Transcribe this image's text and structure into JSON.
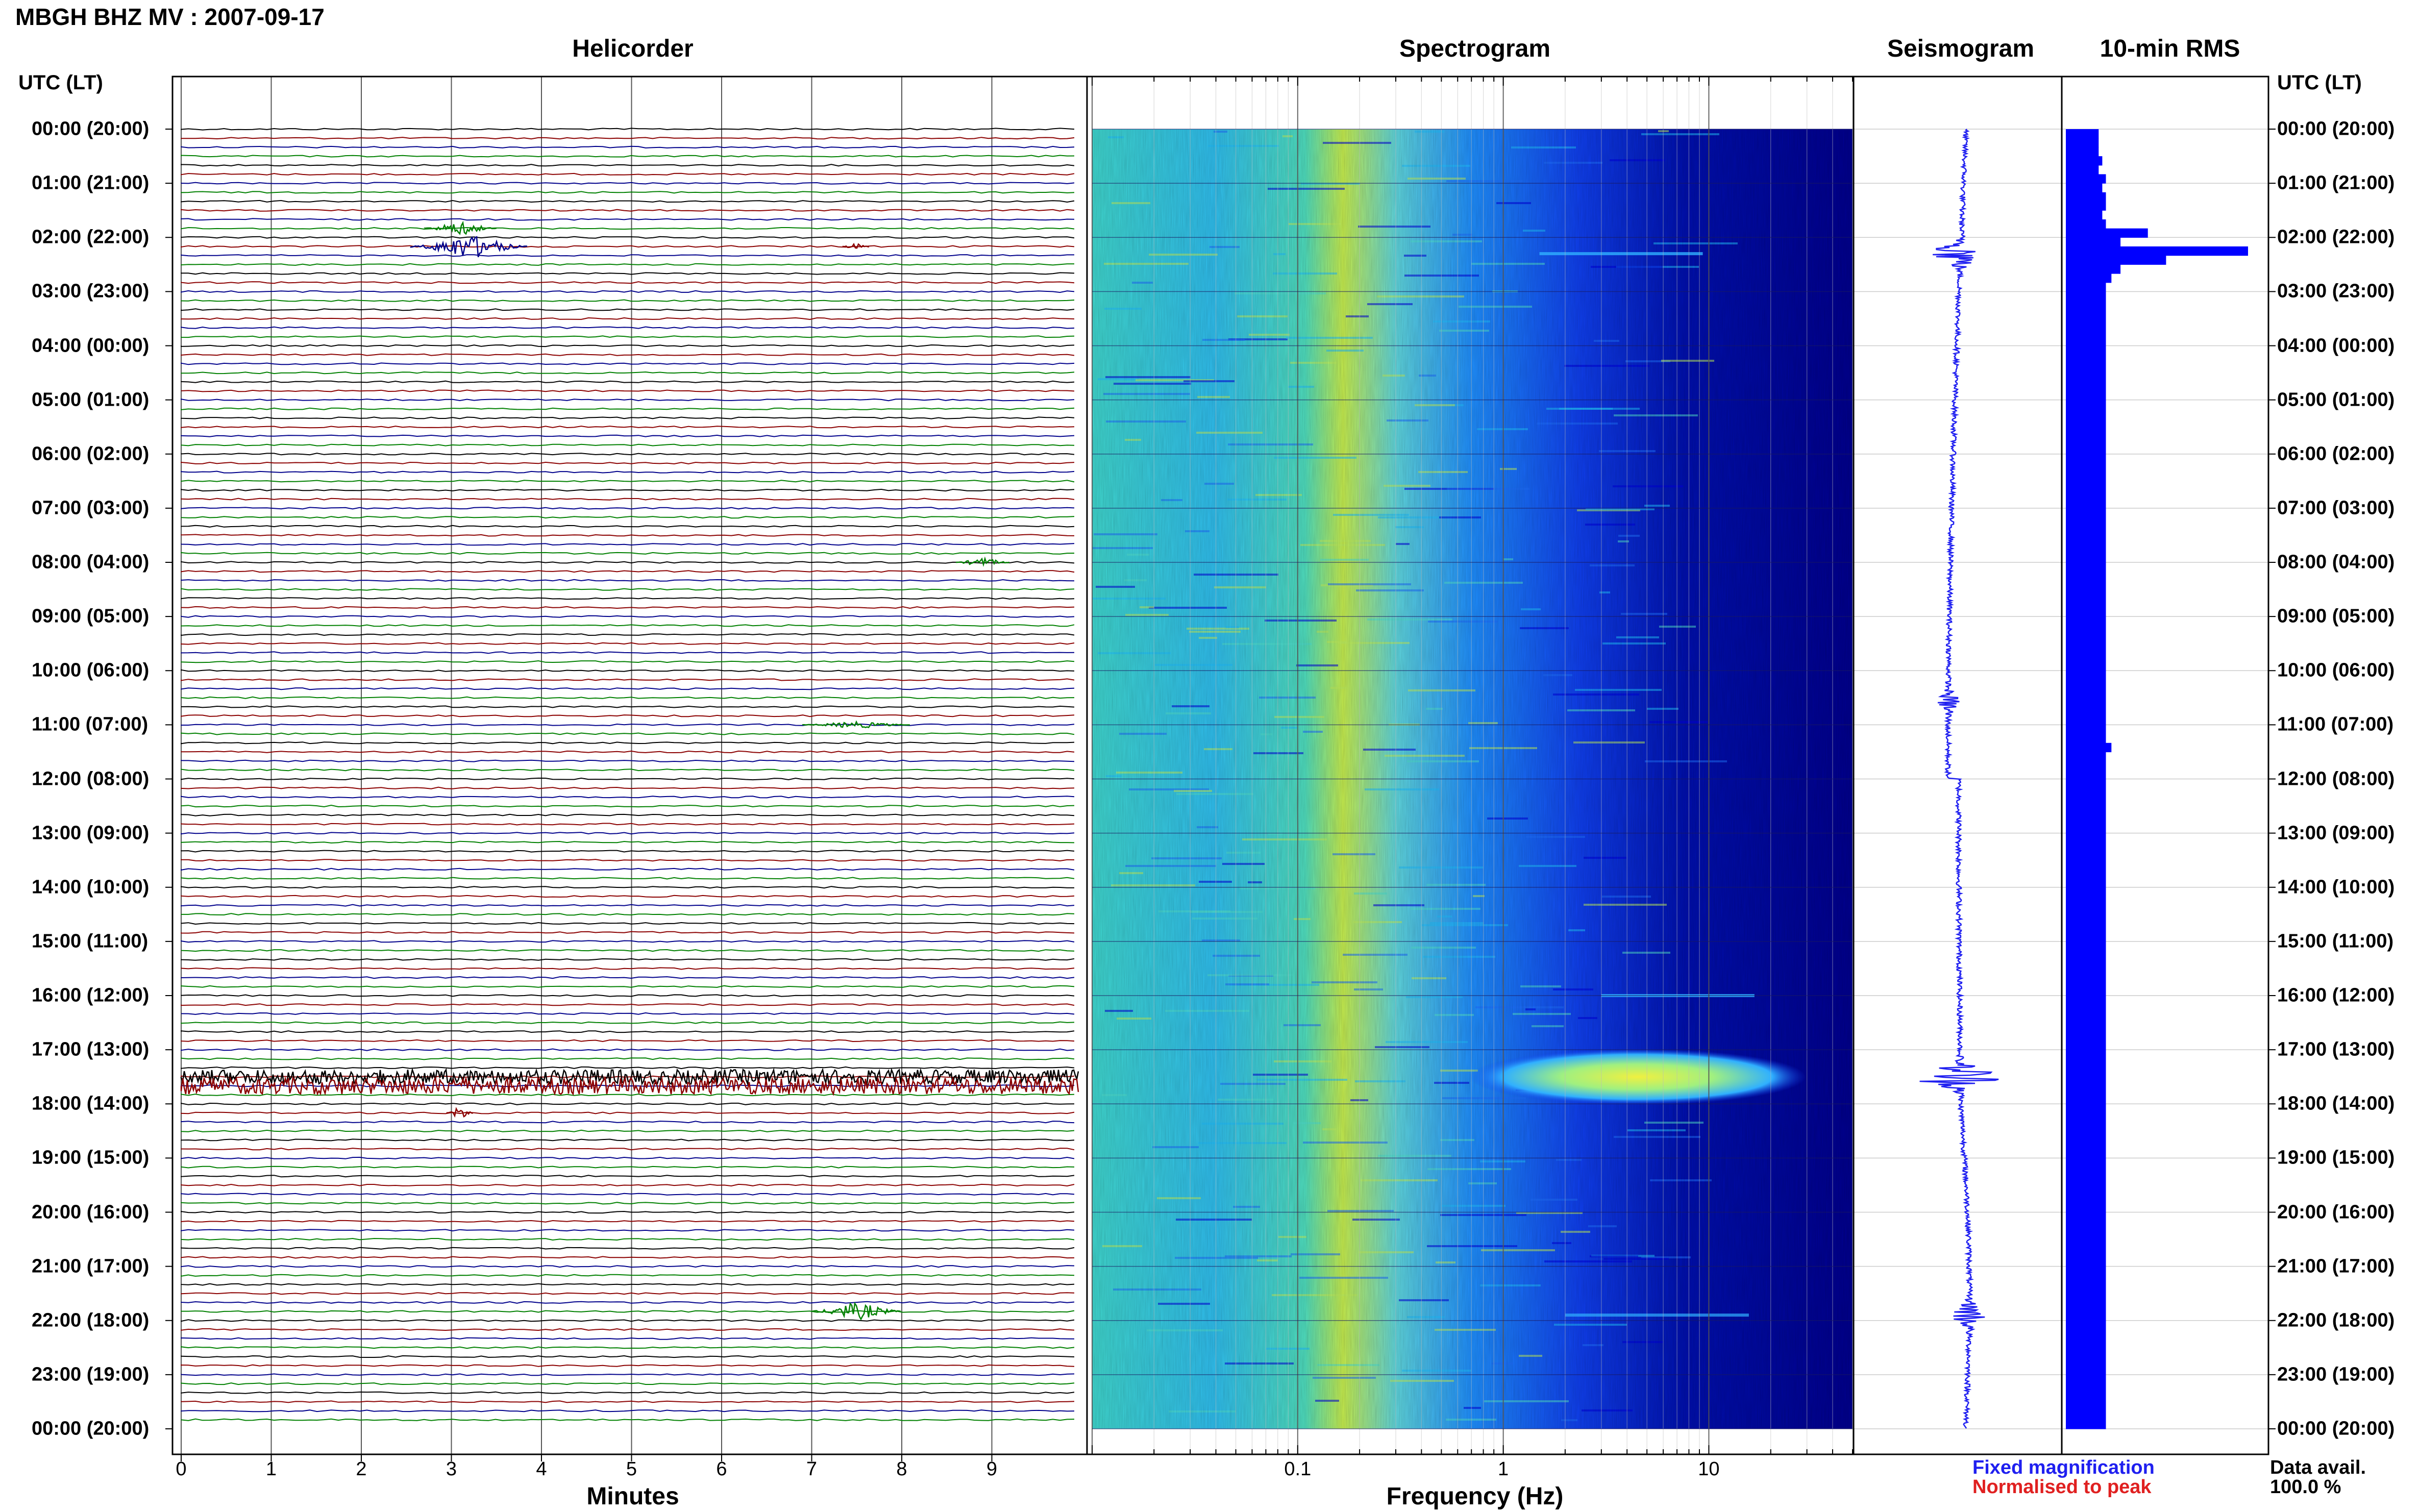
{
  "title": "MBGH BHZ MV : 2007-09-17",
  "panels": {
    "helicorder": "Helicorder",
    "spectrogram": "Spectrogram",
    "seismogram": "Seismogram",
    "rms": "10-min RMS"
  },
  "time_axis_header": "UTC (LT)",
  "time_labels": [
    "00:00 (20:00)",
    "01:00 (21:00)",
    "02:00 (22:00)",
    "03:00 (23:00)",
    "04:00 (00:00)",
    "05:00 (01:00)",
    "06:00 (02:00)",
    "07:00 (03:00)",
    "08:00 (04:00)",
    "09:00 (05:00)",
    "10:00 (06:00)",
    "11:00 (07:00)",
    "12:00 (08:00)",
    "13:00 (09:00)",
    "14:00 (10:00)",
    "15:00 (11:00)",
    "16:00 (12:00)",
    "17:00 (13:00)",
    "18:00 (14:00)",
    "19:00 (15:00)",
    "20:00 (16:00)",
    "21:00 (17:00)",
    "22:00 (18:00)",
    "23:00 (19:00)",
    "00:00 (20:00)"
  ],
  "legend": {
    "fixed": "Fixed magnification",
    "normalised": "Normalised to peak"
  },
  "data_availability": {
    "label": "Data avail.",
    "value": "100.0 %"
  },
  "colors": {
    "fixed": "#1f1ff0",
    "normalised": "#e02020",
    "trace_black": "#000000",
    "trace_red": "#8b0000",
    "trace_blue": "#00008b",
    "trace_green": "#008000",
    "rms_bar": "#0000ff"
  },
  "chart_data": [
    {
      "type": "line",
      "name": "helicorder",
      "xlabel": "Minutes",
      "x_ticks": [
        0,
        1,
        2,
        3,
        4,
        5,
        6,
        7,
        8,
        9
      ],
      "xlim": [
        0,
        10
      ],
      "ylim_hours": [
        0,
        24
      ],
      "trace_count": 144,
      "trace_colors_cycle": [
        "black",
        "red",
        "blue",
        "green"
      ],
      "events": [
        {
          "hour": 1.83,
          "minute": 3.1,
          "color": "green",
          "amp": 12,
          "dur": 0.8
        },
        {
          "hour": 2.17,
          "minute": 3.2,
          "color": "blue",
          "amp": 22,
          "dur": 1.3
        },
        {
          "hour": 2.17,
          "minute": 7.5,
          "color": "red",
          "amp": 6,
          "dur": 0.3
        },
        {
          "hour": 8.0,
          "minute": 8.9,
          "color": "green",
          "amp": 8,
          "dur": 0.6
        },
        {
          "hour": 11.0,
          "minute": 7.5,
          "color": "green",
          "amp": 6,
          "dur": 1.2
        },
        {
          "hour": 17.5,
          "minute": 5.0,
          "color": "black",
          "amp": 14,
          "dur": 10
        },
        {
          "hour": 17.67,
          "minute": 5.0,
          "color": "red",
          "amp": 16,
          "dur": 10
        },
        {
          "hour": 18.17,
          "minute": 3.1,
          "color": "red",
          "amp": 12,
          "dur": 0.3
        },
        {
          "hour": 21.83,
          "minute": 7.5,
          "color": "green",
          "amp": 16,
          "dur": 1.0
        }
      ]
    },
    {
      "type": "heatmap",
      "name": "spectrogram",
      "xlabel": "Frequency (Hz)",
      "x_scale": "log",
      "xlim": [
        0.01,
        50
      ],
      "x_tick_labels": [
        {
          "value": 0.1,
          "label": "0.1"
        },
        {
          "value": 1,
          "label": "1"
        },
        {
          "value": 10,
          "label": "10"
        }
      ],
      "ylim_hours": [
        0,
        24
      ],
      "colormap": [
        "#00007f",
        "#0000e0",
        "#1f6fff",
        "#20c0ff",
        "#50e0d0",
        "#c0f060",
        "#f0f020"
      ]
    },
    {
      "type": "line",
      "name": "seismogram",
      "ylim_hours": [
        0,
        24
      ],
      "events": [
        {
          "hour": 2.3,
          "amp": 60
        },
        {
          "hour": 17.5,
          "amp": 95
        },
        {
          "hour": 21.9,
          "amp": 35
        },
        {
          "hour": 10.6,
          "amp": 20
        }
      ]
    },
    {
      "type": "bar",
      "name": "rms",
      "orientation": "horizontal",
      "ylim_hours": [
        0,
        24
      ],
      "max_value": 1.0,
      "values": [
        0.18,
        0.18,
        0.18,
        0.2,
        0.18,
        0.22,
        0.2,
        0.22,
        0.22,
        0.2,
        0.22,
        0.45,
        0.3,
        1.0,
        0.55,
        0.3,
        0.25,
        0.22,
        0.22,
        0.22,
        0.22,
        0.22,
        0.22,
        0.22,
        0.22,
        0.22,
        0.22,
        0.22,
        0.22,
        0.22,
        0.22,
        0.22,
        0.22,
        0.22,
        0.22,
        0.22,
        0.22,
        0.22,
        0.22,
        0.22,
        0.22,
        0.22,
        0.22,
        0.22,
        0.22,
        0.22,
        0.22,
        0.22,
        0.22,
        0.22,
        0.22,
        0.22,
        0.22,
        0.22,
        0.22,
        0.22,
        0.22,
        0.22,
        0.22,
        0.22,
        0.22,
        0.22,
        0.22,
        0.22,
        0.22,
        0.22,
        0.22,
        0.22,
        0.25,
        0.22,
        0.22,
        0.22,
        0.22,
        0.22,
        0.22,
        0.22,
        0.22,
        0.22,
        0.22,
        0.22,
        0.22,
        0.22,
        0.22,
        0.22,
        0.22,
        0.22,
        0.22,
        0.22,
        0.22,
        0.22,
        0.22,
        0.22,
        0.22,
        0.22,
        0.22,
        0.22,
        0.22,
        0.22,
        0.22,
        0.22,
        0.22,
        0.22,
        0.22,
        0.22,
        0.22,
        0.22,
        0.22,
        0.22,
        0.22,
        0.22,
        0.22,
        0.22,
        0.22,
        0.22,
        0.22,
        0.22,
        0.22,
        0.22,
        0.22,
        0.22,
        0.22,
        0.22,
        0.22,
        0.22,
        0.22,
        0.22,
        0.22,
        0.22,
        0.22,
        0.22,
        0.22,
        0.22,
        0.22,
        0.22,
        0.22,
        0.22,
        0.22,
        0.22,
        0.22,
        0.22,
        0.22,
        0.22,
        0.22,
        0.22
      ]
    }
  ]
}
